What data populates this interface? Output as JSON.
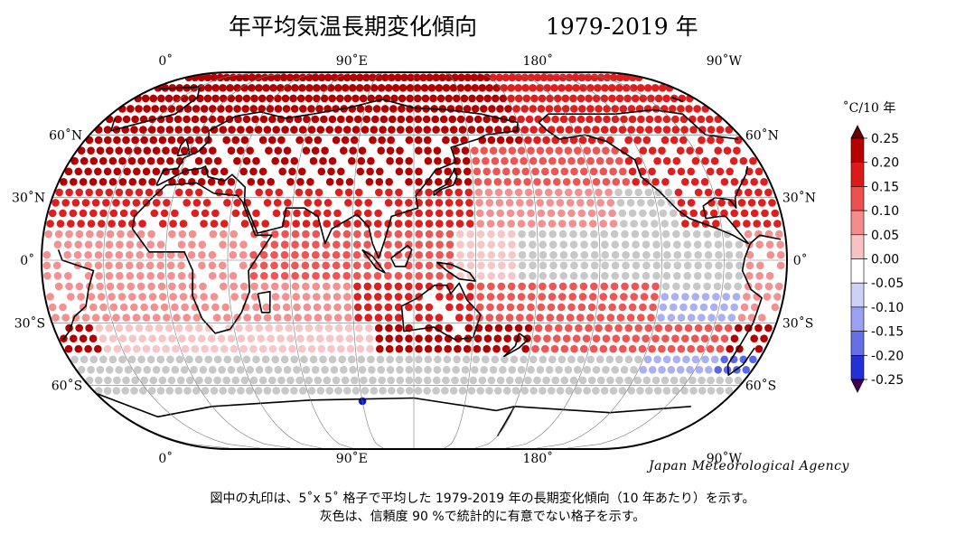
{
  "title": {
    "main": "年平均気温長期変化傾向",
    "period": "1979-2019 年"
  },
  "map": {
    "top_longitude_labels": [
      "0˚",
      "90˚E",
      "180˚",
      "90˚W"
    ],
    "bottom_longitude_labels": [
      "0˚",
      "90˚E",
      "180˚",
      "90˚W"
    ],
    "latitude_labels_left": [
      "60˚N",
      "30˚N",
      "0˚",
      "30˚S",
      "60˚S"
    ],
    "latitude_labels_right": [
      "60˚N",
      "30˚N",
      "0˚",
      "30˚S",
      "60˚S"
    ],
    "central_longitude": "120˚E",
    "land_color": "#ffffff",
    "coastline_color": "#000000",
    "insignificant_color": "#c8c8c8"
  },
  "legend": {
    "unit": "˚C/10 年",
    "ticks": [
      "0.25",
      "0.20",
      "0.15",
      "0.10",
      "0.05",
      "0.00",
      "-0.05",
      "-0.10",
      "-0.15",
      "-0.20",
      "-0.25"
    ],
    "colors": [
      "#b70000",
      "#dc1a1a",
      "#ee5050",
      "#f48c8c",
      "#f8c2c2",
      "#ffffff",
      "#cdd1f5",
      "#9aa1f0",
      "#6670e6",
      "#2230d6",
      "#0000b0",
      "#40005a",
      "#6a0000"
    ]
  },
  "credit": "Japan Meteorological Agency",
  "notes": [
    "図中の丸印は、5˚x 5˚ 格子で平均した 1979-2019 年の長期変化傾向（10 年あたり）を示す。",
    "灰色は、信頼度 90 %で統計的に有意でない格子を示す。"
  ]
}
